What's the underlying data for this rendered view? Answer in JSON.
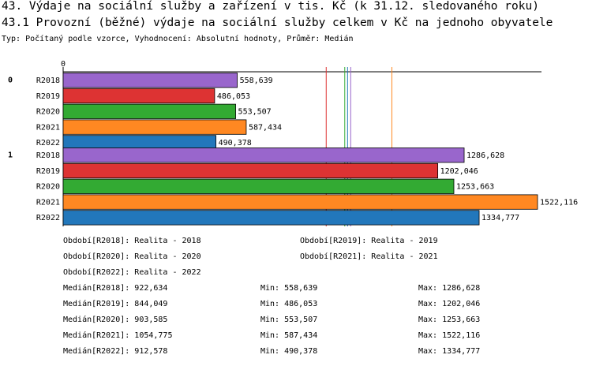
{
  "title": "43. Výdaje na sociální služby a zařízení v tis. Kč (k 31.12. sledovaného roku)",
  "subtitle": "43.1 Provozní (běžné) výdaje na sociální služby celkem v Kč na jednoho obyvatele",
  "type_line": "Typ: Počítaný podle vzorce, Vyhodnocení: Absolutní hodnoty, Průměr: Medián",
  "colors": {
    "R2018": "#9966cc",
    "R2019": "#dd3333",
    "R2020": "#33aa33",
    "R2021": "#ff8822",
    "R2022": "#2277bb"
  },
  "chart_data": {
    "type": "bar",
    "orientation": "horizontal",
    "x_start_label": "0",
    "xlim": [
      0,
      1522116
    ],
    "groups": [
      {
        "label": "0",
        "bars": [
          {
            "series": "R2018",
            "value": 558639,
            "label": "558,639"
          },
          {
            "series": "R2019",
            "value": 486053,
            "label": "486,053"
          },
          {
            "series": "R2020",
            "value": 553507,
            "label": "553,507"
          },
          {
            "series": "R2021",
            "value": 587434,
            "label": "587,434"
          },
          {
            "series": "R2022",
            "value": 490378,
            "label": "490,378"
          }
        ]
      },
      {
        "label": "1",
        "bars": [
          {
            "series": "R2018",
            "value": 1286628,
            "label": "1286,628"
          },
          {
            "series": "R2019",
            "value": 1202046,
            "label": "1202,046"
          },
          {
            "series": "R2020",
            "value": 1253663,
            "label": "1253,663"
          },
          {
            "series": "R2021",
            "value": 1522116,
            "label": "1522,116"
          },
          {
            "series": "R2022",
            "value": 1334777,
            "label": "1334,777"
          }
        ]
      }
    ],
    "median_lines": [
      {
        "series": "R2018",
        "value": 922634
      },
      {
        "series": "R2019",
        "value": 844049
      },
      {
        "series": "R2020",
        "value": 903585
      },
      {
        "series": "R2021",
        "value": 1054775
      },
      {
        "series": "R2022",
        "value": 912578
      }
    ]
  },
  "legend": {
    "periods": [
      "Období[R2018]: Realita - 2018",
      "Období[R2019]: Realita - 2019",
      "Období[R2020]: Realita - 2020",
      "Období[R2021]: Realita - 2021",
      "Období[R2022]: Realita - 2022"
    ],
    "stats": [
      {
        "median": "Medián[R2018]: 922,634",
        "min": "Min: 558,639",
        "max": "Max: 1286,628"
      },
      {
        "median": "Medián[R2019]: 844,049",
        "min": "Min: 486,053",
        "max": "Max: 1202,046"
      },
      {
        "median": "Medián[R2020]: 903,585",
        "min": "Min: 553,507",
        "max": "Max: 1253,663"
      },
      {
        "median": "Medián[R2021]: 1054,775",
        "min": "Min: 587,434",
        "max": "Max: 1522,116"
      },
      {
        "median": "Medián[R2022]: 912,578",
        "min": "Min: 490,378",
        "max": "Max: 1334,777"
      }
    ]
  }
}
